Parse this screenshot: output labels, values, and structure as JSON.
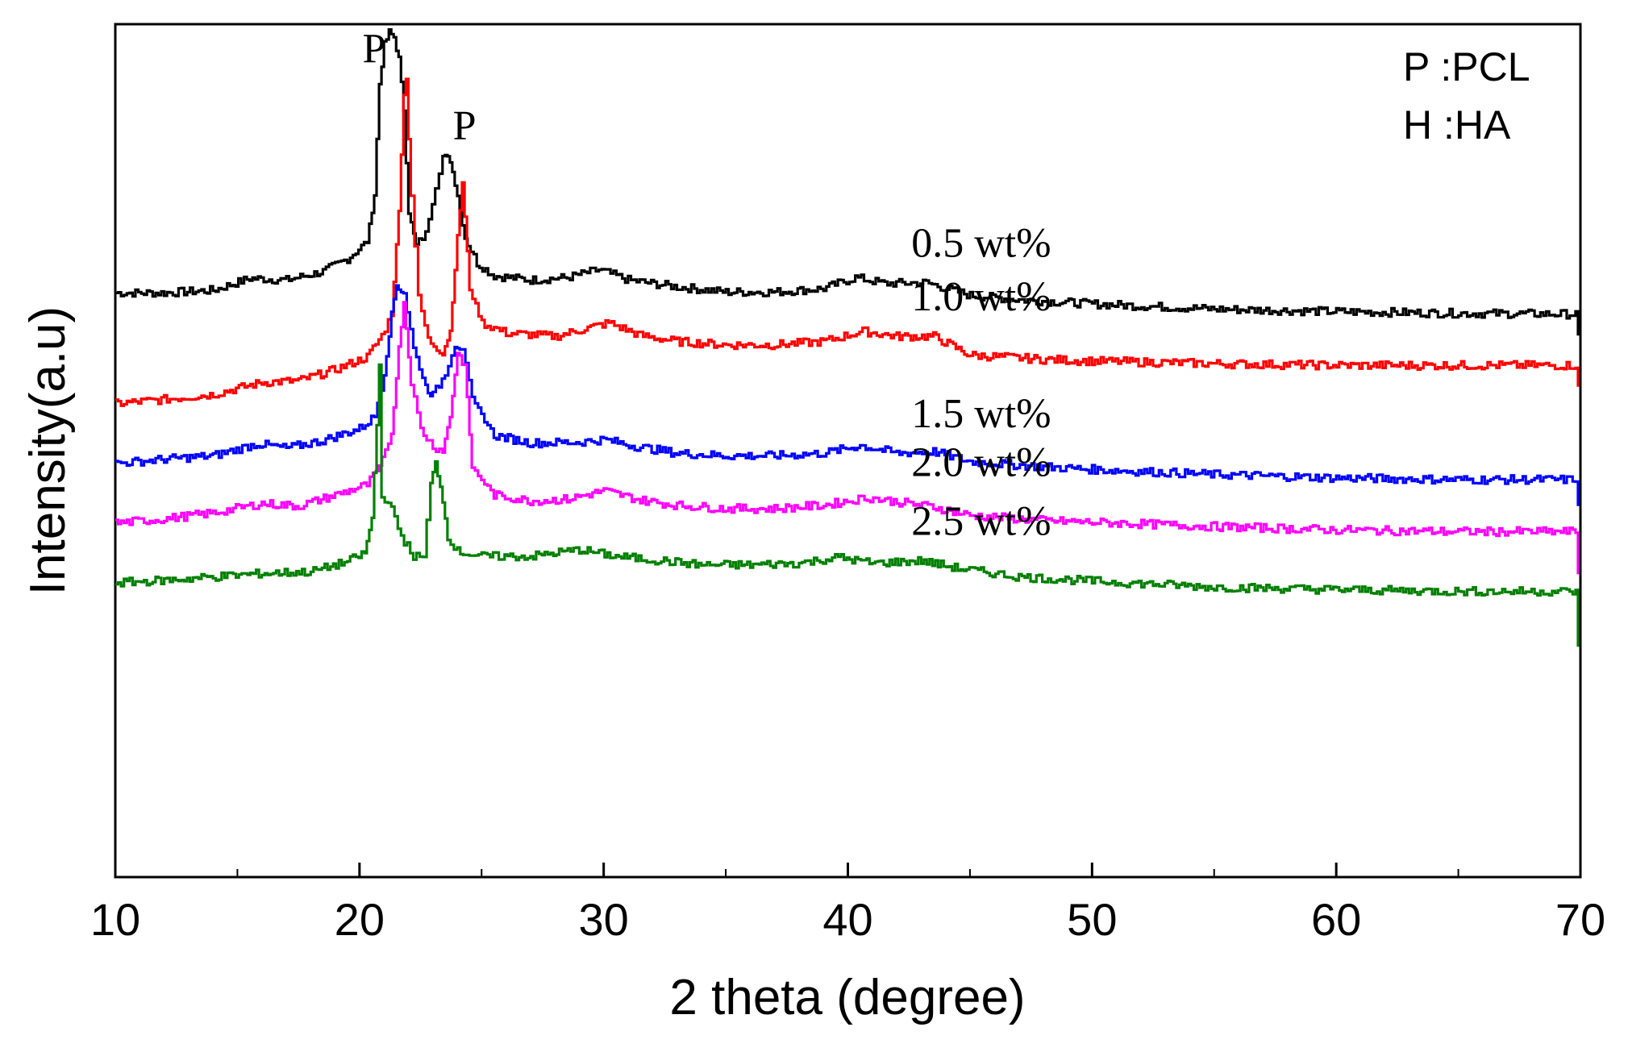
{
  "chart_data": {
    "type": "line",
    "title": "",
    "xlabel": "2 theta (degree)",
    "ylabel": "Intensity(a.u)",
    "xlim": [
      10,
      70
    ],
    "ylim": [
      0,
      100
    ],
    "xticks": [
      10,
      20,
      30,
      40,
      50,
      60,
      70
    ],
    "xtick_labels": [
      "10",
      "20",
      "30",
      "40",
      "50",
      "60",
      "70"
    ],
    "grid": false,
    "legend": {
      "placement": "top-right",
      "entries": [
        "P :PCL",
        "H :HA"
      ]
    },
    "annotations": [
      {
        "text": "P",
        "x": 20.6,
        "y": 95.5
      },
      {
        "text": "P",
        "x": 24.3,
        "y": 86.5
      }
    ],
    "series": [
      {
        "name": "0.5 wt%",
        "color": "#000000",
        "label_x": 42.6,
        "points": [
          [
            10,
            68.5
          ],
          [
            12,
            68.5
          ],
          [
            14,
            68.8
          ],
          [
            15.5,
            70.2
          ],
          [
            17,
            70.0
          ],
          [
            18.5,
            71.0
          ],
          [
            19.5,
            72.5
          ],
          [
            20.3,
            74.5
          ],
          [
            20.6,
            80
          ],
          [
            20.8,
            93
          ],
          [
            21.0,
            97.5
          ],
          [
            21.2,
            99
          ],
          [
            21.4,
            98.5
          ],
          [
            21.6,
            96
          ],
          [
            21.8,
            90
          ],
          [
            22.0,
            78
          ],
          [
            22.3,
            74
          ],
          [
            22.7,
            75.5
          ],
          [
            23.1,
            81
          ],
          [
            23.4,
            84.5
          ],
          [
            23.7,
            84
          ],
          [
            24.0,
            80
          ],
          [
            24.3,
            75
          ],
          [
            24.8,
            72
          ],
          [
            25.5,
            70.5
          ],
          [
            27,
            70.0
          ],
          [
            28.5,
            70.3
          ],
          [
            29.8,
            71.2
          ],
          [
            31,
            70.0
          ],
          [
            33,
            69.2
          ],
          [
            35,
            68.6
          ],
          [
            37,
            68.6
          ],
          [
            39,
            69.0
          ],
          [
            40.3,
            70.3
          ],
          [
            41.5,
            69.6
          ],
          [
            43.2,
            69.7
          ],
          [
            45,
            68.2
          ],
          [
            47,
            67.7
          ],
          [
            50,
            67.2
          ],
          [
            55,
            66.6
          ],
          [
            60,
            66.3
          ],
          [
            65,
            66.1
          ],
          [
            69.8,
            66.0
          ],
          [
            69.9,
            63.5
          ]
        ]
      },
      {
        "name": "1.0 wt%",
        "color": "#ff0000",
        "label_x": 42.6,
        "points": [
          [
            10,
            55.5
          ],
          [
            12,
            56.0
          ],
          [
            14,
            56.6
          ],
          [
            16,
            58.0
          ],
          [
            17.5,
            58.2
          ],
          [
            19,
            59.5
          ],
          [
            20.3,
            61
          ],
          [
            20.9,
            63.5
          ],
          [
            21.3,
            66
          ],
          [
            21.6,
            78
          ],
          [
            21.8,
            92
          ],
          [
            21.9,
            93.5
          ],
          [
            22.1,
            80
          ],
          [
            22.4,
            68
          ],
          [
            22.8,
            63
          ],
          [
            23.4,
            61.5
          ],
          [
            23.7,
            64
          ],
          [
            24.0,
            75
          ],
          [
            24.2,
            81.5
          ],
          [
            24.5,
            69
          ],
          [
            25,
            65
          ],
          [
            26,
            63.8
          ],
          [
            28,
            63.4
          ],
          [
            30.2,
            65.0
          ],
          [
            31.5,
            63.5
          ],
          [
            33,
            62.8
          ],
          [
            35,
            62.4
          ],
          [
            37,
            62.4
          ],
          [
            39,
            62.8
          ],
          [
            40.6,
            64.0
          ],
          [
            42,
            63.4
          ],
          [
            43.5,
            63.4
          ],
          [
            45,
            61.2
          ],
          [
            48,
            60.7
          ],
          [
            50,
            60.5
          ],
          [
            55,
            60.2
          ],
          [
            60,
            60.0
          ],
          [
            65,
            60.0
          ],
          [
            69.8,
            60.0
          ],
          [
            69.9,
            57.5
          ]
        ]
      },
      {
        "name": "1.5 wt%",
        "color": "#0000ff",
        "label_x": 42.6,
        "points": [
          [
            10,
            48.5
          ],
          [
            12,
            49.0
          ],
          [
            14,
            49.4
          ],
          [
            15.8,
            50.8
          ],
          [
            17,
            50.3
          ],
          [
            18.5,
            51.2
          ],
          [
            20,
            52.6
          ],
          [
            20.6,
            54
          ],
          [
            21.0,
            59
          ],
          [
            21.3,
            66
          ],
          [
            21.5,
            69.5
          ],
          [
            21.8,
            68.5
          ],
          [
            22.2,
            62
          ],
          [
            22.7,
            57.5
          ],
          [
            23.0,
            56.5
          ],
          [
            23.5,
            59
          ],
          [
            23.9,
            62.5
          ],
          [
            24.2,
            62
          ],
          [
            24.6,
            56
          ],
          [
            25.5,
            51.8
          ],
          [
            27,
            50.9
          ],
          [
            29,
            51.0
          ],
          [
            30,
            51.3
          ],
          [
            31.5,
            50.4
          ],
          [
            33,
            49.7
          ],
          [
            35,
            49.4
          ],
          [
            37,
            49.4
          ],
          [
            39,
            49.7
          ],
          [
            40.5,
            50.6
          ],
          [
            42,
            49.7
          ],
          [
            43.5,
            49.9
          ],
          [
            45,
            48.7
          ],
          [
            48,
            48.1
          ],
          [
            50,
            47.8
          ],
          [
            55,
            47.2
          ],
          [
            60,
            46.8
          ],
          [
            65,
            46.6
          ],
          [
            69.8,
            46.6
          ],
          [
            69.9,
            43.5
          ]
        ]
      },
      {
        "name": "2.0 wt%",
        "color": "#ff00ff",
        "label_x": 42.6,
        "points": [
          [
            10,
            41.5
          ],
          [
            12,
            42.0
          ],
          [
            14,
            42.7
          ],
          [
            16,
            43.8
          ],
          [
            17.5,
            43.5
          ],
          [
            19,
            44.8
          ],
          [
            20.3,
            46
          ],
          [
            20.8,
            48
          ],
          [
            21.3,
            52
          ],
          [
            21.6,
            62
          ],
          [
            21.8,
            67.5
          ],
          [
            22.1,
            58
          ],
          [
            22.5,
            52.5
          ],
          [
            23.0,
            50.5
          ],
          [
            23.4,
            50
          ],
          [
            23.7,
            54
          ],
          [
            24.0,
            61.5
          ],
          [
            24.3,
            60
          ],
          [
            24.6,
            48
          ],
          [
            25.5,
            44.8
          ],
          [
            27,
            44.1
          ],
          [
            28.5,
            44.3
          ],
          [
            30,
            45.3
          ],
          [
            31.5,
            44.2
          ],
          [
            33,
            43.6
          ],
          [
            35,
            43.2
          ],
          [
            37,
            43.2
          ],
          [
            39,
            43.6
          ],
          [
            40.8,
            44.5
          ],
          [
            42,
            44.0
          ],
          [
            43.5,
            43.4
          ],
          [
            45,
            42.4
          ],
          [
            48,
            41.8
          ],
          [
            50,
            41.6
          ],
          [
            55,
            41.1
          ],
          [
            60,
            40.7
          ],
          [
            65,
            40.5
          ],
          [
            69.8,
            40.5
          ],
          [
            69.9,
            35.5
          ]
        ]
      },
      {
        "name": "2.5 wt%",
        "color": "#008000",
        "label_x": 42.6,
        "points": [
          [
            10,
            34.5
          ],
          [
            12,
            34.8
          ],
          [
            14,
            35.2
          ],
          [
            16,
            35.6
          ],
          [
            18,
            35.8
          ],
          [
            19.5,
            37.0
          ],
          [
            20.2,
            38
          ],
          [
            20.5,
            42
          ],
          [
            20.7,
            53
          ],
          [
            20.8,
            60
          ],
          [
            20.9,
            45
          ],
          [
            21.3,
            43
          ],
          [
            21.7,
            40
          ],
          [
            22.2,
            37.6
          ],
          [
            22.6,
            37.5
          ],
          [
            22.9,
            46
          ],
          [
            23.1,
            48.5
          ],
          [
            23.3,
            46
          ],
          [
            23.6,
            40
          ],
          [
            24,
            38.2
          ],
          [
            25,
            37.6
          ],
          [
            27,
            37.6
          ],
          [
            29,
            38.4
          ],
          [
            30.5,
            37.6
          ],
          [
            32,
            37.2
          ],
          [
            34,
            36.6
          ],
          [
            36,
            36.6
          ],
          [
            38,
            36.8
          ],
          [
            39.6,
            37.5
          ],
          [
            41,
            36.8
          ],
          [
            43,
            37.1
          ],
          [
            44.5,
            36.2
          ],
          [
            47,
            35.2
          ],
          [
            50,
            34.7
          ],
          [
            55,
            34.0
          ],
          [
            60,
            33.7
          ],
          [
            65,
            33.5
          ],
          [
            69.8,
            33.5
          ],
          [
            69.9,
            27
          ]
        ]
      }
    ]
  }
}
